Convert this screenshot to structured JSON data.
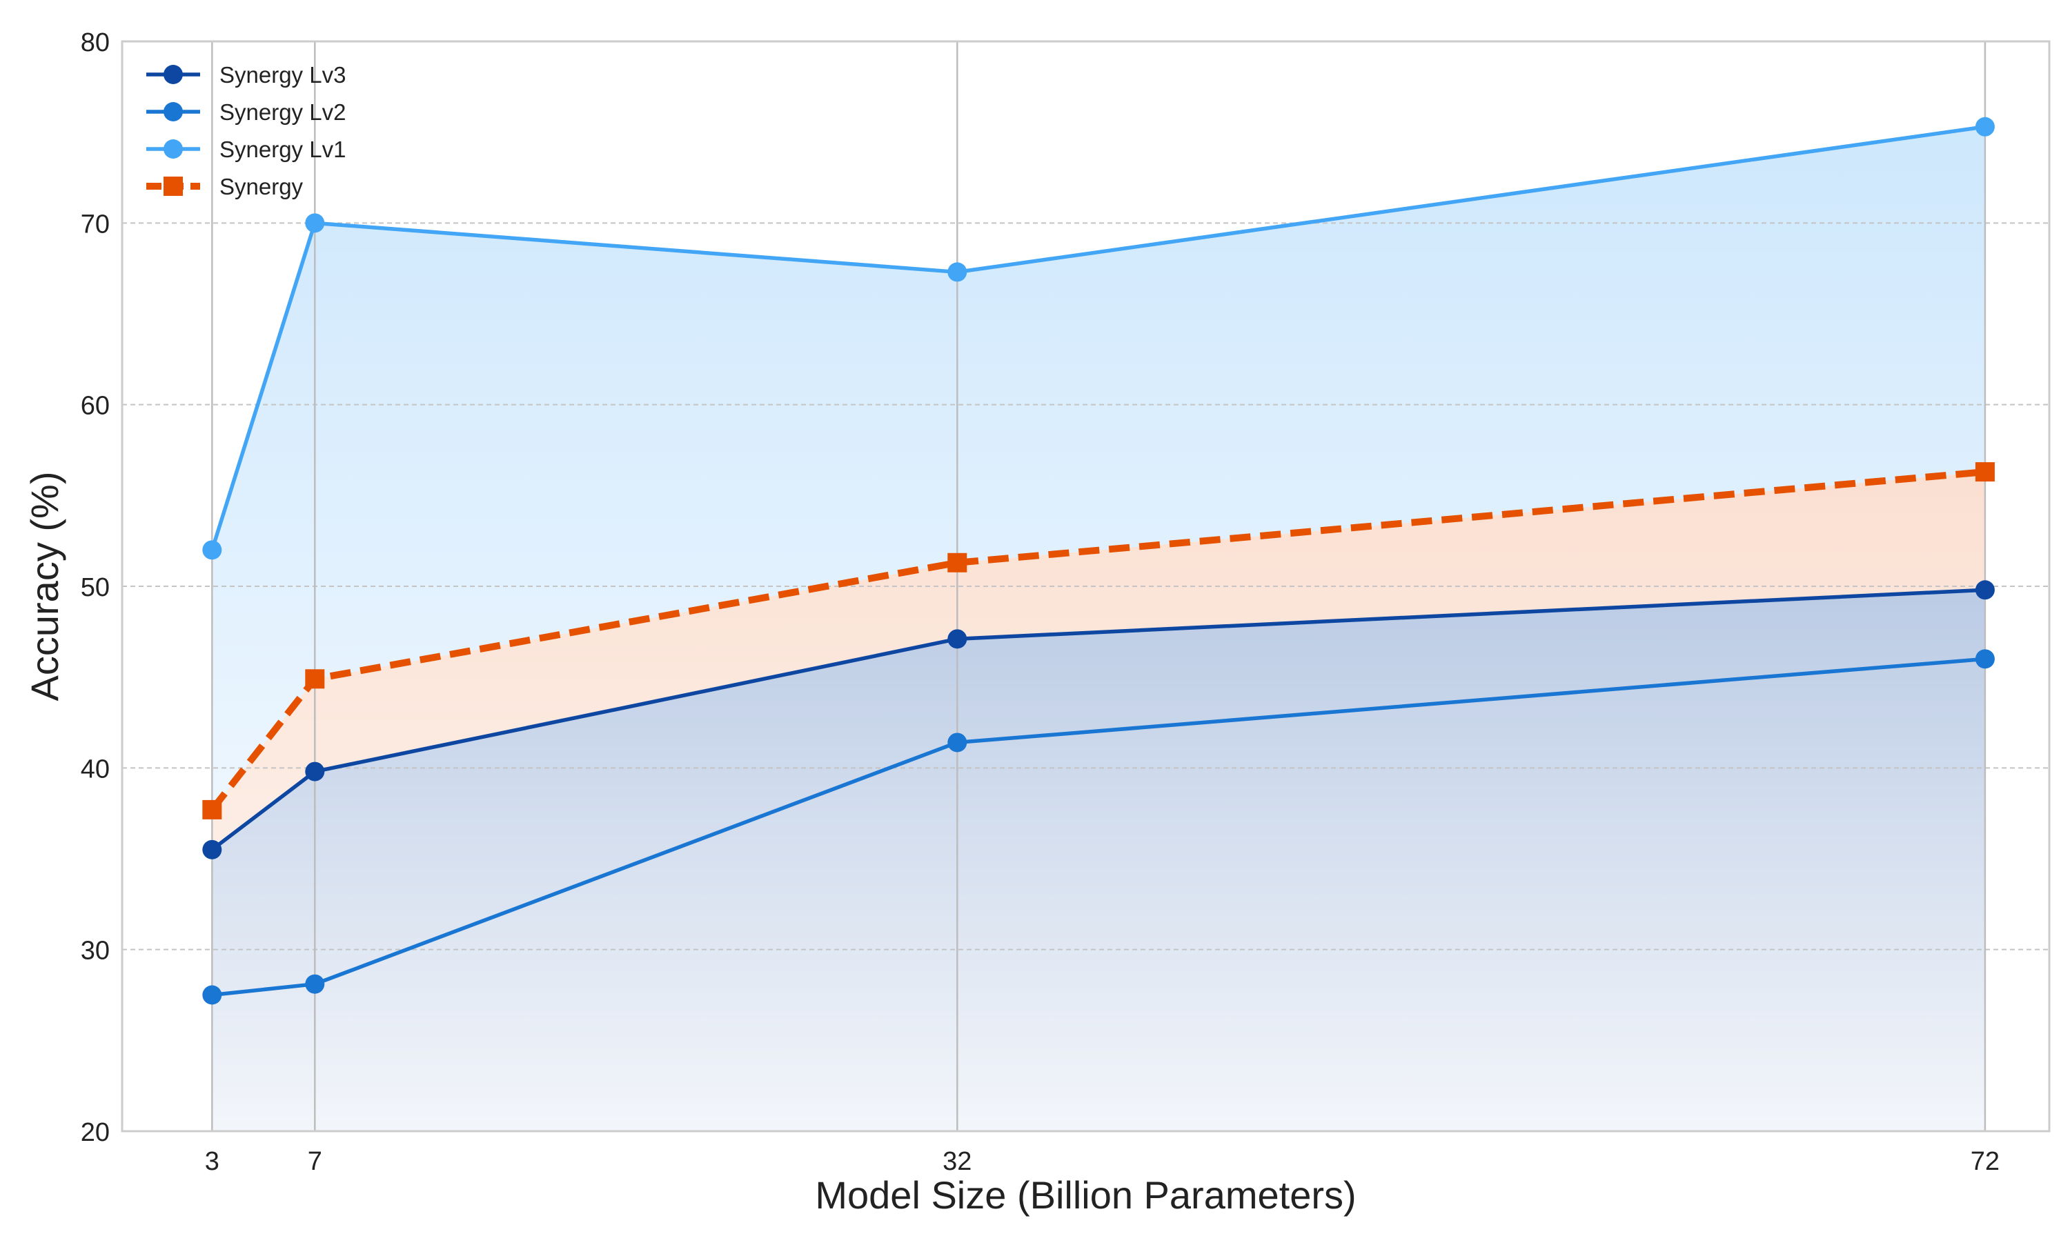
{
  "chart_data": {
    "type": "line",
    "title": "",
    "xlabel": "Model Size (Billion Parameters)",
    "ylabel": "Accuracy (%)",
    "x": [
      3,
      7,
      32,
      72
    ],
    "x_ticks": [
      3,
      7,
      32,
      72
    ],
    "xlim": [
      -0.5,
      74.5
    ],
    "ylim": [
      20,
      80
    ],
    "y_ticks": [
      20,
      30,
      40,
      50,
      60,
      70,
      80
    ],
    "grid": {
      "x": "solid vertical lines at data x",
      "y": "dashed horizontal"
    },
    "legend_position": "top-left",
    "series": [
      {
        "name": "Synergy Lv3",
        "values": [
          35.5,
          39.8,
          47.1,
          49.8
        ],
        "color": "#0d47a1",
        "marker": "circle",
        "line": "solid"
      },
      {
        "name": "Synergy Lv2",
        "values": [
          27.5,
          28.1,
          41.4,
          46.0
        ],
        "color": "#1976d2",
        "marker": "circle",
        "line": "solid"
      },
      {
        "name": "Synergy Lv1",
        "values": [
          52.0,
          70.0,
          67.3,
          75.3
        ],
        "color": "#42a5f5",
        "marker": "circle",
        "line": "solid"
      },
      {
        "name": "Synergy",
        "values": [
          37.7,
          44.9,
          51.3,
          56.3
        ],
        "color": "#e65100",
        "marker": "square",
        "line": "dashed"
      }
    ],
    "fills": {
      "upper": "#42a5f5",
      "middle": "#e65100",
      "lower": "#0d47a1"
    }
  }
}
